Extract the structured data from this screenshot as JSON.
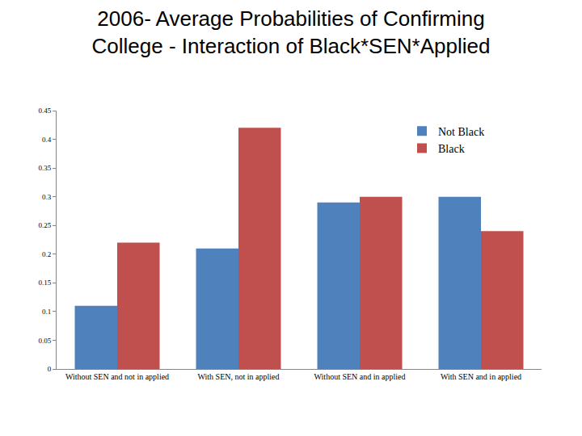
{
  "chart_data": {
    "type": "bar",
    "title": "2006- Average Probabilities of Confirming College - Interaction of Black*SEN*Applied",
    "categories": [
      "Without SEN and not in applied",
      "With SEN, not in applied",
      "Without SEN and in applied",
      "With SEN and in applied"
    ],
    "series": [
      {
        "name": "Not Black",
        "color": "#4f81bd",
        "values": [
          0.11,
          0.21,
          0.29,
          0.3
        ]
      },
      {
        "name": "Black",
        "color": "#c0504d",
        "values": [
          0.22,
          0.42,
          0.3,
          0.24
        ]
      }
    ],
    "ylim": [
      0,
      0.45
    ],
    "yticks": [
      0,
      0.05,
      0.1,
      0.15,
      0.2,
      0.25,
      0.3,
      0.35,
      0.4,
      0.45
    ],
    "grid": false,
    "legend": "top right"
  }
}
